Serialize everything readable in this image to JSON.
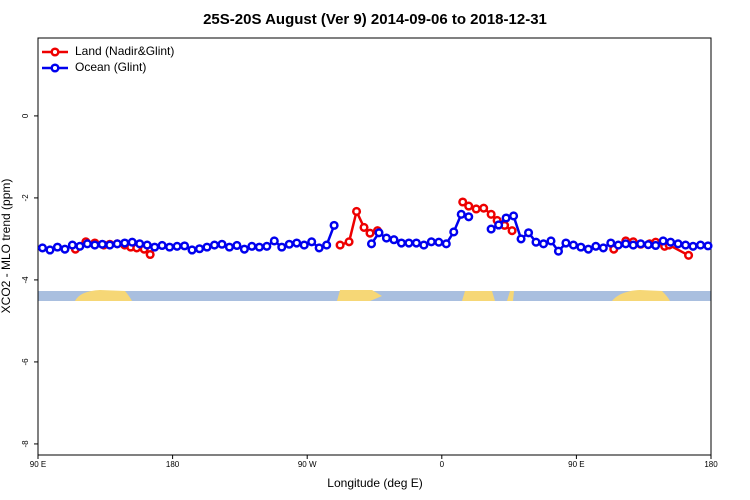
{
  "chart_data": {
    "type": "line",
    "title": "25S-20S August (Ver 9)   2014-09-06 to 2018-12-31",
    "x_label": "Longitude (deg E)",
    "y_label": "XCO2 - MLO trend (ppm)",
    "xlim": [
      90,
      540
    ],
    "ylim": [
      -8.27,
      1.9
    ],
    "xticks": [
      {
        "value": 90,
        "label": "90 E"
      },
      180,
      {
        "value": 270,
        "label": "90 W"
      },
      {
        "value": 360,
        "label": "0"
      },
      {
        "value": 450,
        "label": "90 E"
      },
      {
        "value": 540,
        "label": "180"
      }
    ],
    "yticks": [
      0,
      -2,
      -4,
      -6,
      -8
    ],
    "legend": "top-left",
    "series": [
      {
        "name": "Land (Nadir&Glint)",
        "color": "#ee0000",
        "x": [
          115,
          122,
          128,
          134,
          138,
          143,
          148,
          152,
          156,
          161,
          165,
          230,
          292,
          298,
          303,
          308,
          312,
          317,
          345,
          374,
          378,
          383,
          388,
          393,
          397,
          402,
          407,
          440,
          475,
          483,
          488,
          493,
          499,
          503,
          509,
          512,
          525
        ],
        "values": [
          -3.25,
          -3.07,
          -3.1,
          -3.15,
          -3.13,
          -3.12,
          -3.15,
          -3.2,
          -3.22,
          -3.25,
          -3.38,
          null,
          -3.15,
          -3.07,
          -2.33,
          -2.72,
          -2.86,
          -2.8,
          null,
          -2.1,
          -2.2,
          -2.27,
          -2.25,
          -2.4,
          -2.55,
          -2.67,
          -2.8,
          null,
          -3.25,
          -3.05,
          -3.07,
          -3.13,
          -3.12,
          -3.08,
          -3.18,
          -3.15,
          -3.4
        ]
      },
      {
        "name": "Ocean (Glint)",
        "color": "#0000ee",
        "x": [
          93,
          98,
          103,
          108,
          113,
          118,
          123,
          128,
          133,
          138,
          143,
          148,
          153,
          158,
          163,
          168,
          173,
          178,
          183,
          188,
          193,
          198,
          203,
          208,
          213,
          218,
          223,
          228,
          233,
          238,
          243,
          248,
          253,
          258,
          263,
          268,
          273,
          278,
          283,
          288,
          293,
          313,
          318,
          323,
          328,
          333,
          338,
          343,
          348,
          353,
          358,
          363,
          368,
          373,
          378,
          383,
          393,
          398,
          403,
          408,
          413,
          418,
          423,
          428,
          433,
          438,
          443,
          448,
          453,
          458,
          463,
          468,
          473,
          478,
          483,
          488,
          493,
          498,
          503,
          508,
          513,
          518,
          523,
          528,
          533,
          538
        ],
        "values": [
          -3.22,
          -3.27,
          -3.2,
          -3.25,
          -3.15,
          -3.18,
          -3.12,
          -3.15,
          -3.13,
          -3.15,
          -3.12,
          -3.1,
          -3.08,
          -3.12,
          -3.15,
          -3.2,
          -3.16,
          -3.2,
          -3.18,
          -3.17,
          -3.27,
          -3.24,
          -3.2,
          -3.15,
          -3.13,
          -3.2,
          -3.16,
          -3.25,
          -3.18,
          -3.2,
          -3.18,
          -3.05,
          -3.2,
          -3.13,
          -3.1,
          -3.15,
          -3.07,
          -3.22,
          -3.15,
          -2.67,
          null,
          -3.12,
          -2.85,
          -2.98,
          -3.02,
          -3.1,
          -3.1,
          -3.1,
          -3.15,
          -3.07,
          -3.08,
          -3.12,
          -2.83,
          -2.4,
          -2.46,
          null,
          -2.76,
          -2.66,
          -2.49,
          -2.44,
          -3.0,
          -2.85,
          -3.08,
          -3.12,
          -3.05,
          -3.3,
          -3.1,
          -3.15,
          -3.2,
          -3.25,
          -3.18,
          -3.22,
          -3.1,
          -3.15,
          -3.12,
          -3.15,
          -3.12,
          -3.14,
          -3.16,
          -3.05,
          -3.08,
          -3.12,
          -3.15,
          -3.18,
          -3.15,
          -3.17
        ]
      }
    ]
  }
}
